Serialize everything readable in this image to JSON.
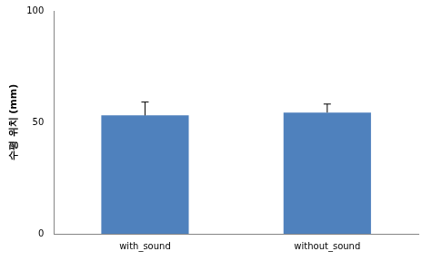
{
  "chart_data": {
    "type": "bar",
    "y_label": "수평 위치 (mm)",
    "categories": [
      "with_sound",
      "without_sound"
    ],
    "values": [
      53.1,
      54.4
    ],
    "errors": [
      6,
      3.8
    ],
    "color": "#4f81bd",
    "ylim": [
      0,
      100
    ],
    "yticks": [
      0,
      50,
      100
    ],
    "grid": false
  }
}
